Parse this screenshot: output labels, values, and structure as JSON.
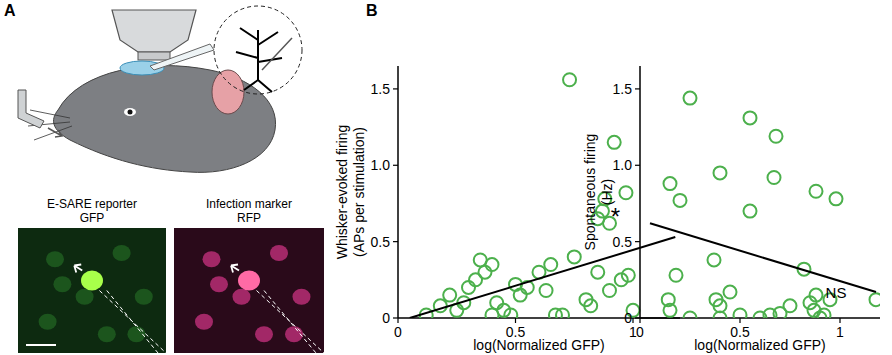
{
  "panel_labels": [
    "A",
    "B"
  ],
  "images": [
    {
      "title": "E-SARE reporter",
      "channel": "GFP"
    },
    {
      "title": "Infection marker",
      "channel": "RFP"
    }
  ],
  "chart_data": [
    {
      "type": "scatter",
      "x_label": "log(Normalized GFP)",
      "y_label": "Whisker-evoked firing (APs per stimulation)",
      "annotation": "*",
      "xlim": [
        0,
        1.2
      ],
      "ylim": [
        0,
        1.65
      ],
      "xticks": [
        0,
        0.5,
        1
      ],
      "yticks": [
        0,
        0.5,
        {
          "value": 1,
          "label": "1.0"
        },
        1.5
      ],
      "series": [
        {
          "type": "scatter",
          "marker": "circle",
          "color": "#4cb04c",
          "x": [
            0.12,
            0.18,
            0.22,
            0.25,
            0.28,
            0.3,
            0.33,
            0.35,
            0.37,
            0.4,
            0.4,
            0.42,
            0.45,
            0.48,
            0.5,
            0.52,
            0.55,
            0.6,
            0.63,
            0.65,
            0.67,
            0.7,
            0.73,
            0.75,
            0.8,
            0.82,
            0.85,
            0.87,
            0.88,
            0.9,
            0.9,
            0.92,
            0.95,
            0.97,
            0.98,
            1.0,
            1.15,
            0.85
          ],
          "values": [
            0.02,
            0.08,
            0.15,
            0.05,
            0.1,
            0.2,
            0.25,
            0.38,
            0.3,
            0.35,
            0.02,
            0.1,
            0.05,
            0.02,
            0.22,
            0.15,
            0.2,
            0.3,
            0.18,
            0.35,
            0.02,
            0.02,
            1.56,
            0.4,
            0.12,
            0.08,
            0.3,
            0.7,
            0.78,
            0.62,
            0.18,
            1.15,
            0.25,
            0.82,
            0.28,
            0.05,
            0.12,
            0.65
          ]
        },
        {
          "type": "line",
          "line_style": "solid",
          "color": "#000000",
          "x": [
            0.05,
            1.18
          ],
          "values": [
            0.0,
            0.53
          ]
        }
      ]
    },
    {
      "type": "scatter",
      "x_label": "log(Normalized GFP)",
      "y_label": "Spontaneous firing (Hz)",
      "annotation": "NS",
      "xlim": [
        0,
        1.2
      ],
      "ylim": [
        0,
        1.65
      ],
      "xticks": [
        0,
        0.5,
        1
      ],
      "yticks": [
        0,
        0.5,
        {
          "value": 1,
          "label": "1.0"
        },
        1.5
      ],
      "series": [
        {
          "type": "scatter",
          "marker": "circle",
          "color": "#4cb04c",
          "x": [
            0.25,
            0.15,
            0.2,
            0.4,
            0.55,
            0.68,
            0.67,
            0.55,
            0.88,
            0.98,
            0.37,
            0.18,
            0.15,
            0.38,
            0.4,
            0.45,
            0.4,
            0.5,
            0.6,
            0.65,
            0.7,
            0.75,
            0.85,
            0.87,
            0.88,
            0.9,
            0.92,
            0.82,
            1.18,
            0.95,
            0.25
          ],
          "values": [
            1.44,
            0.88,
            0.77,
            0.95,
            1.31,
            1.19,
            0.92,
            0.7,
            0.83,
            0.78,
            0.38,
            0.28,
            0.05,
            0.12,
            0.08,
            0.17,
            0.0,
            0.02,
            0.0,
            0.02,
            0.03,
            0.08,
            0.1,
            0.05,
            0.15,
            0.0,
            0.02,
            0.32,
            0.12,
            0.12,
            0.0
          ]
        },
        {
          "type": "line",
          "line_style": "solid",
          "color": "#000000",
          "x": [
            0.05,
            1.18
          ],
          "values": [
            0.62,
            0.17
          ]
        }
      ]
    }
  ]
}
